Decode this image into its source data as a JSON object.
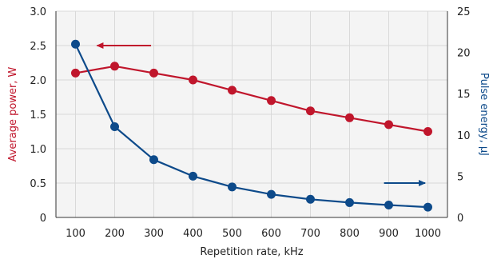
{
  "chart_data": {
    "type": "line",
    "x": [
      100,
      200,
      300,
      400,
      500,
      600,
      700,
      800,
      900,
      1000
    ],
    "xlabel": "Repetition rate, kHz",
    "xlim": [
      50,
      1050
    ],
    "x_ticks": [
      100,
      200,
      300,
      400,
      500,
      600,
      700,
      800,
      900,
      1000
    ],
    "y_left": {
      "label": "Average power, W",
      "lim": [
        0,
        3.0
      ],
      "ticks": [
        "0",
        "0.5",
        "1.0",
        "1.5",
        "2.0",
        "2.5",
        "3.0"
      ],
      "color": "#c0162c"
    },
    "y_right": {
      "label": "Pulse energy, µJ",
      "lim": [
        0,
        25
      ],
      "ticks": [
        "0",
        "5",
        "10",
        "15",
        "20",
        "25"
      ],
      "color": "#0d4a8a"
    },
    "series": [
      {
        "axis": "left",
        "color": "#c0162c",
        "values": [
          2.1,
          2.2,
          2.1,
          2.0,
          1.85,
          1.7,
          1.55,
          1.45,
          1.35,
          1.25
        ],
        "arrow_direction": "left"
      },
      {
        "axis": "right",
        "color": "#0d4a8a",
        "values": [
          21,
          11,
          7,
          5,
          3.7,
          2.8,
          2.2,
          1.8,
          1.5,
          1.25
        ],
        "arrow_direction": "right"
      }
    ],
    "grid": true,
    "background": "#f4f4f4",
    "grid_color": "#d9d9d9"
  }
}
